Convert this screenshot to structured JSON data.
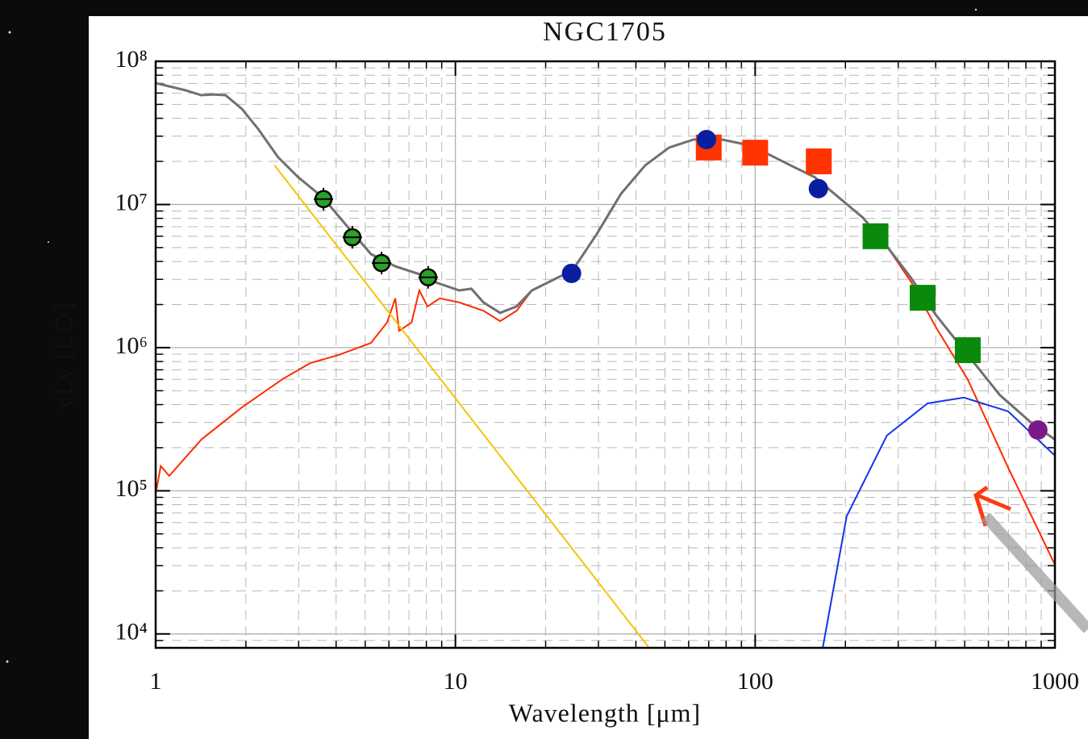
{
  "chart_data": {
    "type": "line",
    "title": "NGC1705",
    "xlabel": "Wavelength [μm]",
    "ylabel": "νLν [L⊙]",
    "xscale": "log",
    "yscale": "log",
    "grid": true,
    "xlim": [
      1,
      1000
    ],
    "ylim": [
      8000,
      100000000
    ],
    "xticks": [
      1,
      10,
      100,
      1000
    ],
    "yticks": [
      {
        "value": 10000,
        "label": "10⁴"
      },
      {
        "value": 100000,
        "label": "10⁵"
      },
      {
        "value": 1000000,
        "label": "10⁶"
      },
      {
        "value": 10000000,
        "label": "10⁷"
      },
      {
        "value": 100000000,
        "label": "10⁸"
      }
    ],
    "xminorticks": [
      2,
      3,
      4,
      5,
      6,
      7,
      8,
      9,
      20,
      30,
      40,
      50,
      60,
      70,
      80,
      90,
      200,
      300,
      400,
      500,
      600,
      700,
      800,
      900
    ],
    "yminorticks": [
      9000,
      20000,
      30000,
      40000,
      50000,
      60000,
      70000,
      80000,
      90000,
      200000,
      300000,
      400000,
      500000,
      600000,
      700000,
      800000,
      900000,
      2000000,
      3000000,
      4000000,
      5000000,
      6000000,
      7000000,
      8000000,
      9000000,
      20000000,
      30000000,
      40000000,
      50000000,
      60000000,
      70000000,
      80000000,
      90000000
    ],
    "series": [
      {
        "type": "line",
        "color": "#ff2a00",
        "x": [
          1.0,
          1.04,
          1.11,
          1.42,
          1.94,
          2.64,
          3.28,
          4.08,
          5.23,
          5.92,
          6.3,
          6.49,
          7.14,
          7.58,
          8.07,
          8.87,
          10.3,
          12.4,
          14.1,
          16.0,
          18.0,
          21.7,
          24.6,
          29.6,
          35.7,
          43.0,
          51.7,
          62.3,
          75.0,
          90.3,
          109,
          131,
          158,
          190,
          229,
          275,
          332,
          400,
          512,
          698,
          1000
        ],
        "values": [
          95000,
          149000,
          127000,
          228000,
          383000,
          600000,
          780000,
          890000,
          1080000,
          1500000,
          2210000,
          1310000,
          1500000,
          2510000,
          1940000,
          2210000,
          2070000,
          1810000,
          1530000,
          1810000,
          2510000,
          3050000,
          3470000,
          6200000,
          11900000,
          18800000,
          25000000,
          28400000,
          28800000,
          26600000,
          22800000,
          18800000,
          15500000,
          11200000,
          8070000,
          5100000,
          2860000,
          1400000,
          600000,
          145000,
          30500
        ]
      },
      {
        "type": "line",
        "color": "#f5c400",
        "x": [
          2.49,
          44.3
        ],
        "values": [
          18800000,
          8000
        ]
      },
      {
        "type": "line",
        "color": "#1535e6",
        "x": [
          168,
          202,
          275,
          376,
          497,
          698,
          1000
        ],
        "values": [
          8000,
          66500,
          243000,
          408000,
          448000,
          359000,
          176000
        ]
      },
      {
        "type": "line",
        "color": "#707070",
        "x": [
          1.0,
          1.26,
          1.42,
          1.56,
          1.71,
          1.94,
          2.2,
          2.56,
          2.99,
          3.61,
          4.34,
          5.23,
          6.3,
          7.58,
          8.58,
          10.3,
          11.3,
          12.4,
          14.1,
          16.0,
          18.0,
          21.7,
          24.6,
          29.6,
          35.7,
          43.0,
          51.7,
          62.3,
          75.0,
          90.3,
          109,
          131,
          158,
          190,
          229,
          275,
          332,
          400,
          512,
          656,
          840,
          1000
        ],
        "values": [
          70500000,
          62700000,
          58000000,
          58700000,
          58000000,
          46500000,
          33600000,
          21400000,
          15500000,
          11200000,
          7100000,
          4500000,
          3700000,
          3260000,
          2860000,
          2510000,
          2580000,
          2070000,
          1750000,
          1940000,
          2510000,
          3050000,
          3470000,
          6200000,
          11900000,
          18800000,
          25000000,
          28400000,
          28800000,
          26600000,
          22800000,
          18800000,
          15500000,
          11200000,
          8070000,
          5100000,
          3050000,
          1700000,
          890000,
          465000,
          295000,
          228000
        ]
      },
      {
        "type": "scatter",
        "marker": "circle-dot",
        "color": "#2aa12a",
        "x": [
          3.63,
          4.53,
          5.67,
          8.11
        ],
        "values": [
          10900000,
          5900000,
          3900000,
          3100000
        ]
      },
      {
        "type": "scatter",
        "marker": "square",
        "color": "#ff3300",
        "x": [
          70,
          100,
          163
        ],
        "values": [
          25000000,
          23000000,
          20000000
        ]
      },
      {
        "type": "scatter",
        "marker": "square",
        "color": "#0a8a0a",
        "x": [
          252,
          362,
          512
        ],
        "values": [
          6000000,
          2230000,
          960000
        ]
      },
      {
        "type": "scatter",
        "marker": "circle",
        "color": "#0a1fa0",
        "x": [
          24.4,
          68.8,
          162.5
        ],
        "values": [
          3300000,
          28400000,
          12900000
        ]
      },
      {
        "type": "scatter",
        "marker": "circle",
        "color": "#7a1a8a",
        "x": [
          877
        ],
        "values": [
          266000
        ]
      }
    ]
  }
}
